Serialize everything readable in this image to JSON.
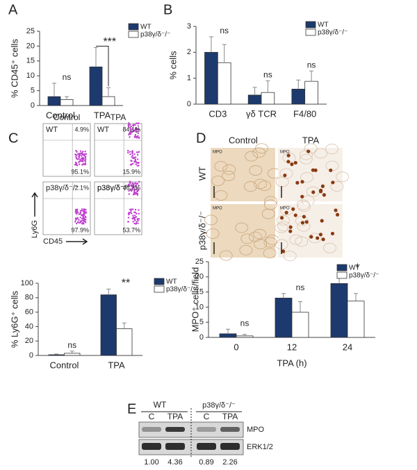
{
  "panel_labels": [
    "A",
    "B",
    "C",
    "D",
    "E"
  ],
  "chart_data": [
    {
      "type": "bar",
      "ylabel": "% CD45⁺ cells",
      "categories": [
        "Control",
        "TPA"
      ],
      "ylim": [
        0,
        25
      ],
      "yticks": [
        0,
        5,
        10,
        15,
        20,
        25
      ],
      "series": [
        {
          "name": "WT",
          "color": "#1c3a6e",
          "values": [
            3,
            13
          ],
          "errors": [
            4.5,
            6.5
          ]
        },
        {
          "name": "p38γ/δ⁻/⁻",
          "color": "#ffffff",
          "values": [
            2,
            3
          ],
          "errors": [
            1,
            3
          ]
        }
      ],
      "annotations": [
        "ns",
        "***"
      ]
    },
    {
      "type": "bar",
      "ylabel": "% cells",
      "categories": [
        "CD3",
        "γδ TCR",
        "F4/80"
      ],
      "ylim": [
        0,
        3
      ],
      "yticks": [
        0,
        1,
        2,
        3
      ],
      "series": [
        {
          "name": "WT",
          "color": "#1c3a6e",
          "values": [
            2.0,
            0.35,
            0.58
          ],
          "errors": [
            0.6,
            0.3,
            0.35
          ]
        },
        {
          "name": "p38γ/δ⁻/⁻",
          "color": "#ffffff",
          "values": [
            1.6,
            0.45,
            0.88
          ],
          "errors": [
            0.7,
            0.45,
            0.4
          ]
        }
      ],
      "annotations": [
        "ns",
        "ns",
        "ns"
      ]
    },
    {
      "type": "bar",
      "ylabel": "% Ly6G⁺ cells",
      "categories": [
        "Control",
        "TPA"
      ],
      "ylim": [
        0,
        100
      ],
      "yticks": [
        0,
        20,
        40,
        60,
        80,
        100
      ],
      "series": [
        {
          "name": "WT",
          "color": "#1c3a6e",
          "values": [
            1,
            84
          ],
          "errors": [
            1,
            8
          ]
        },
        {
          "name": "p38γ/δ⁻/⁻",
          "color": "#ffffff",
          "values": [
            3,
            37
          ],
          "errors": [
            3,
            8
          ]
        }
      ],
      "annotations": [
        "ns",
        "**"
      ]
    },
    {
      "type": "bar",
      "ylabel": "MPO⁺ cells/field",
      "xlabel": "TPA (h)",
      "categories": [
        "0",
        "12",
        "24"
      ],
      "ylim": [
        0,
        25
      ],
      "yticks": [
        0,
        5,
        10,
        15,
        20,
        25
      ],
      "series": [
        {
          "name": "WT",
          "color": "#1c3a6e",
          "values": [
            1.2,
            13,
            17.8
          ],
          "errors": [
            1.5,
            1.5,
            3.2
          ]
        },
        {
          "name": "p38γ/δ⁻/⁻",
          "color": "#ffffff",
          "values": [
            0.5,
            8.3,
            12
          ],
          "errors": [
            0.5,
            3.5,
            2.5
          ]
        }
      ],
      "annotations": [
        "ns",
        "ns",
        "*"
      ]
    }
  ],
  "flow": {
    "columns": [
      "Control",
      "TPA"
    ],
    "rows": [
      "WT",
      "p38γ/δ⁻/⁻"
    ],
    "percentages": [
      [
        "4.9%",
        "95.1%"
      ],
      [
        "84.1%",
        "15.9%"
      ],
      [
        "2.1%",
        "97.9%"
      ],
      [
        "46.3%",
        "53.7%"
      ]
    ],
    "y_axis": "Ly6G",
    "x_axis": "CD45"
  },
  "histology": {
    "columns": [
      "Control",
      "TPA"
    ],
    "rows": [
      "WT",
      "p38γ/δ⁻/⁻"
    ],
    "stain": "MPO"
  },
  "blot": {
    "groups": [
      "WT",
      "p38γ/δ⁻/⁻"
    ],
    "lanes": [
      "C",
      "TPA",
      "C",
      "TPA"
    ],
    "rows": [
      "MPO",
      "ERK1/2"
    ],
    "quantification": [
      "1.00",
      "4.36",
      "0.89",
      "2.26"
    ]
  }
}
